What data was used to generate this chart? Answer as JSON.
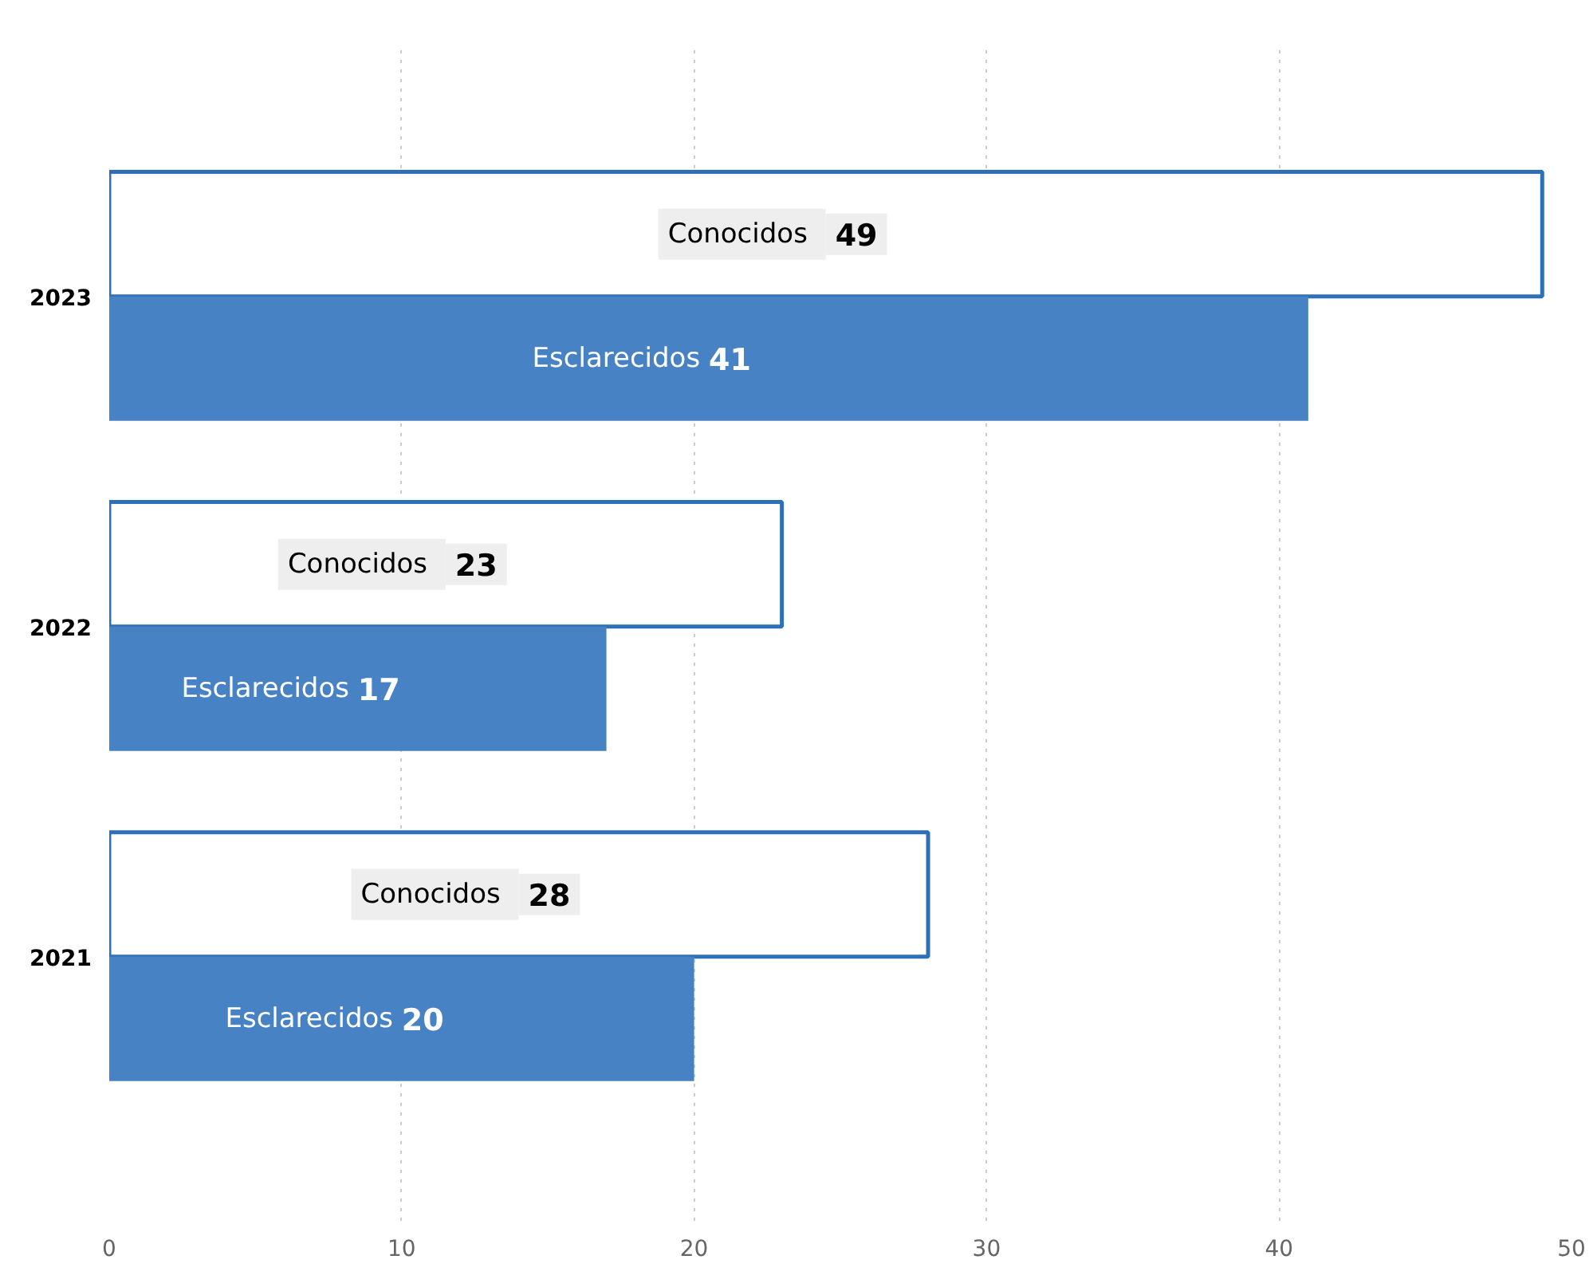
{
  "chart_data": {
    "type": "bar",
    "orientation": "horizontal",
    "categories": [
      "2023",
      "2022",
      "2021"
    ],
    "series": [
      {
        "name": "Conocidos",
        "color": "#ffffff",
        "values": [
          49,
          23,
          28
        ]
      },
      {
        "name": "Esclarecidos",
        "color": "#4682c4",
        "values": [
          41,
          17,
          20
        ]
      }
    ],
    "xlim": [
      0,
      50
    ],
    "xticks": [
      0,
      10,
      20,
      30,
      40,
      50
    ],
    "grid": "x",
    "data_labels": true
  }
}
